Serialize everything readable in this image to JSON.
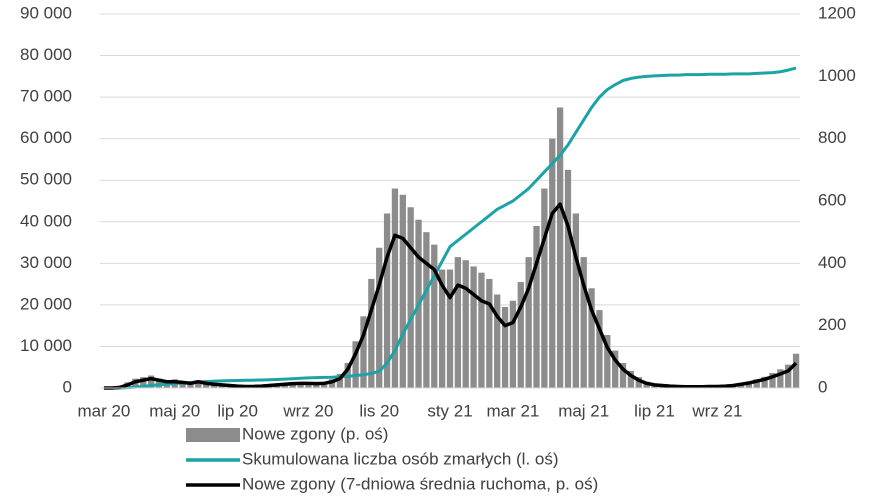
{
  "chart_data": {
    "type": "combo",
    "categories": [
      "mar 20",
      null,
      null,
      null,
      null,
      null,
      null,
      null,
      null,
      "maj 20",
      null,
      null,
      null,
      null,
      null,
      null,
      null,
      "lip 20",
      null,
      null,
      null,
      null,
      null,
      null,
      null,
      null,
      "wrz 20",
      null,
      null,
      null,
      null,
      null,
      null,
      null,
      null,
      "lis 20",
      null,
      null,
      null,
      null,
      null,
      null,
      null,
      null,
      "sty 21",
      null,
      null,
      null,
      null,
      null,
      null,
      null,
      "mar 21",
      null,
      null,
      null,
      null,
      null,
      null,
      null,
      null,
      "maj 21",
      null,
      null,
      null,
      null,
      null,
      null,
      null,
      null,
      "lip 21",
      null,
      null,
      null,
      null,
      null,
      null,
      null,
      "wrz 21",
      null,
      null,
      null,
      null,
      null,
      null,
      null,
      null,
      null,
      null
    ],
    "series": [
      {
        "name": "Nowe zgony (p. oś)",
        "type": "bar",
        "axis": "y2",
        "color": "#8c8c8c",
        "values": [
          0,
          1,
          5,
          18,
          30,
          35,
          40,
          30,
          25,
          28,
          22,
          20,
          25,
          18,
          15,
          12,
          10,
          8,
          7,
          6,
          8,
          10,
          12,
          15,
          18,
          20,
          18,
          17,
          20,
          28,
          45,
          80,
          150,
          230,
          350,
          450,
          560,
          640,
          620,
          580,
          540,
          500,
          460,
          380,
          380,
          420,
          410,
          390,
          370,
          350,
          300,
          260,
          280,
          340,
          420,
          520,
          640,
          800,
          900,
          700,
          560,
          420,
          320,
          250,
          170,
          120,
          80,
          55,
          35,
          20,
          14,
          10,
          8,
          7,
          6,
          5,
          5,
          7,
          7,
          8,
          11,
          16,
          21,
          28,
          36,
          48,
          60,
          75,
          110
        ]
      },
      {
        "name": "Skumulowana liczba osób zmarłych (l. oś)",
        "type": "line",
        "color": "#1ba3a6",
        "values": [
          0,
          0,
          10,
          80,
          220,
          400,
          600,
          780,
          920,
          1060,
          1190,
          1300,
          1440,
          1550,
          1640,
          1710,
          1770,
          1810,
          1850,
          1880,
          1920,
          1980,
          2050,
          2130,
          2230,
          2340,
          2450,
          2500,
          2550,
          2600,
          2700,
          2800,
          3000,
          3200,
          3500,
          4000,
          6000,
          9000,
          13000,
          16500,
          20000,
          23500,
          27000,
          30500,
          34000,
          35500,
          37000,
          38500,
          40000,
          41500,
          43000,
          44000,
          45000,
          46500,
          48000,
          50000,
          52000,
          54000,
          56000,
          58500,
          61500,
          64500,
          67500,
          70000,
          71800,
          73000,
          74000,
          74500,
          74800,
          75000,
          75100,
          75200,
          75300,
          75300,
          75400,
          75400,
          75400,
          75500,
          75500,
          75500,
          75600,
          75600,
          75600,
          75700,
          75800,
          75900,
          76100,
          76500,
          77000
        ]
      },
      {
        "name": "Nowe zgony (7-dniowa średnia ruchoma, p. oś)",
        "type": "line",
        "axis": "y2",
        "color": "#000000",
        "values": [
          0,
          0,
          2,
          10,
          20,
          25,
          30,
          25,
          20,
          20,
          18,
          15,
          20,
          15,
          12,
          10,
          8,
          6,
          5,
          5,
          6,
          8,
          10,
          12,
          14,
          15,
          15,
          14,
          15,
          20,
          30,
          60,
          110,
          170,
          250,
          330,
          420,
          490,
          480,
          450,
          420,
          400,
          380,
          330,
          290,
          330,
          320,
          300,
          280,
          270,
          230,
          200,
          210,
          260,
          320,
          400,
          480,
          560,
          590,
          520,
          420,
          330,
          250,
          190,
          130,
          90,
          60,
          40,
          25,
          15,
          10,
          8,
          6,
          5,
          4,
          4,
          4,
          5,
          5,
          6,
          8,
          12,
          16,
          22,
          28,
          36,
          45,
          55,
          80
        ]
      }
    ],
    "ylim": [
      0,
      90000
    ],
    "yticks": [
      {
        "value": 0,
        "label": "0"
      },
      {
        "value": 10000,
        "label": "10 000"
      },
      {
        "value": 20000,
        "label": "20 000"
      },
      {
        "value": 30000,
        "label": "30 000"
      },
      {
        "value": 40000,
        "label": "40 000"
      },
      {
        "value": 50000,
        "label": "50 000"
      },
      {
        "value": 60000,
        "label": "60 000"
      },
      {
        "value": 70000,
        "label": "70 000"
      },
      {
        "value": 80000,
        "label": "80 000"
      },
      {
        "value": 90000,
        "label": "90 000"
      }
    ],
    "y2lim": [
      0,
      1200
    ],
    "y2ticks": [
      0,
      200,
      400,
      600,
      800,
      1000,
      1200
    ],
    "grid": true
  }
}
